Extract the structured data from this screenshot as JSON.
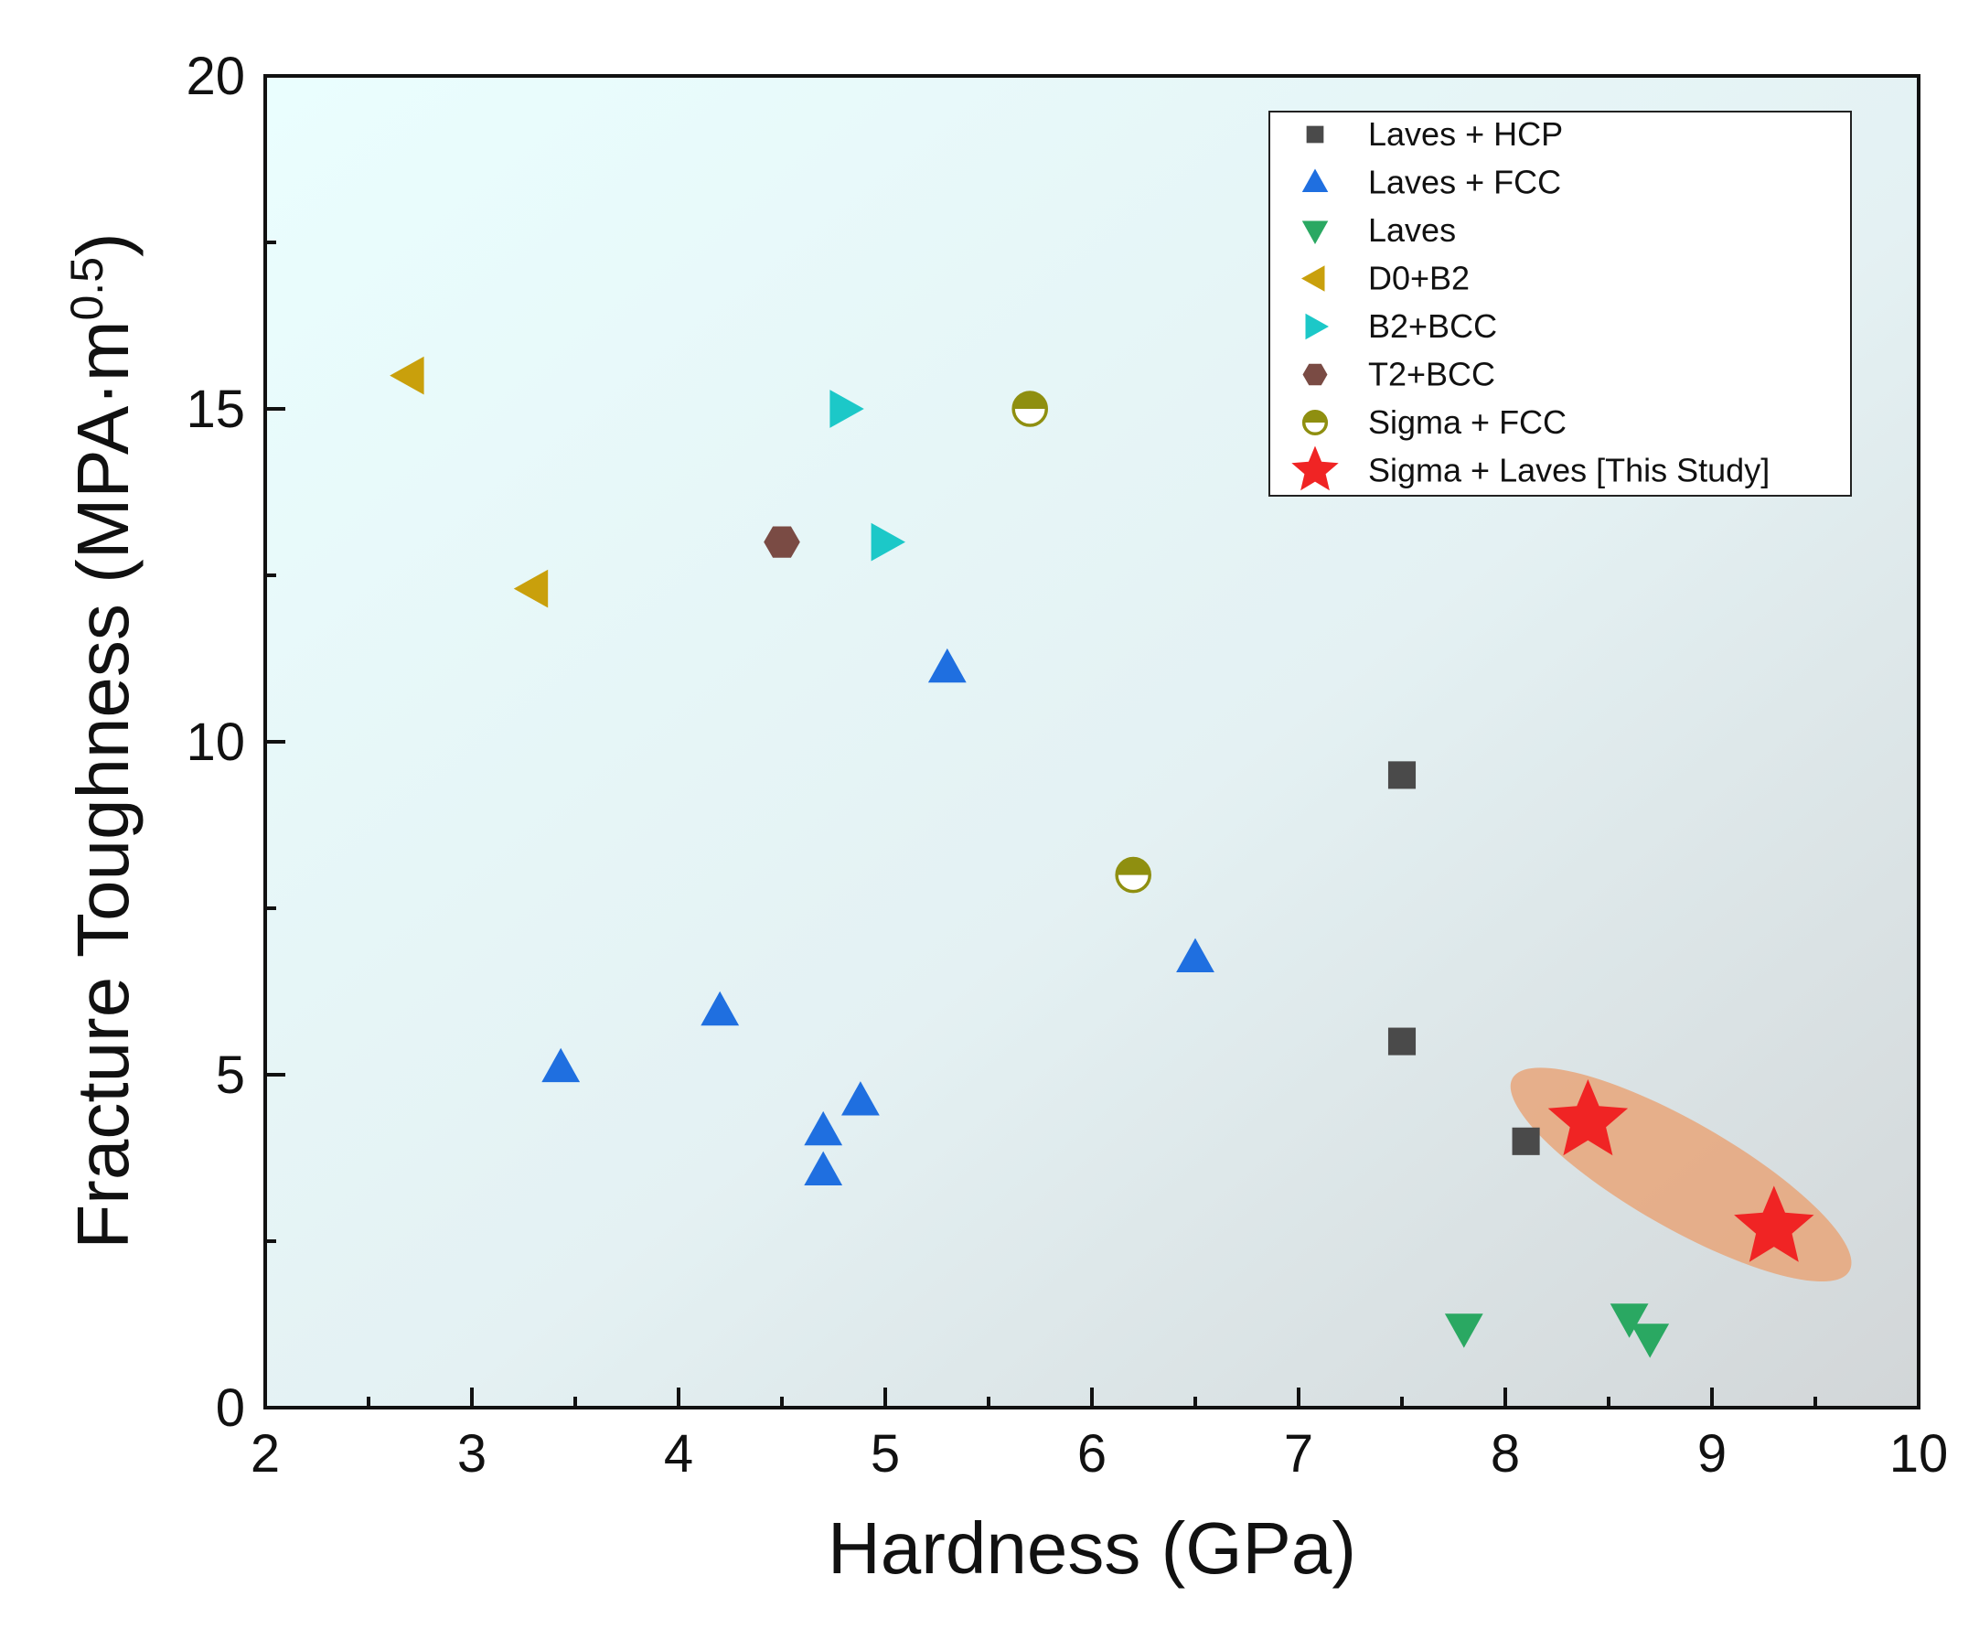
{
  "chart_data": {
    "type": "scatter",
    "title": "",
    "xlabel": "Hardness (GPa)",
    "ylabel_main": "Fracture Toughness (MPA·m",
    "ylabel_sup": "0.5",
    "ylabel_close": ")",
    "xlim": [
      2,
      10
    ],
    "ylim": [
      0,
      20
    ],
    "xticks": [
      2,
      3,
      4,
      5,
      6,
      7,
      8,
      9,
      10
    ],
    "yticks": [
      0,
      5,
      10,
      15,
      20
    ],
    "xtick_labels": [
      "2",
      "3",
      "4",
      "5",
      "6",
      "7",
      "8",
      "9",
      "10"
    ],
    "ytick_labels": [
      "0",
      "5",
      "10",
      "15",
      "20"
    ],
    "legend_position": "top-right",
    "background": "gradient light cyan to grey",
    "series": [
      {
        "name": "Laves + HCP",
        "marker": "square",
        "color": "#4a4a4a",
        "points": [
          [
            7.5,
            9.5
          ],
          [
            7.5,
            5.5
          ],
          [
            8.1,
            4.0
          ]
        ]
      },
      {
        "name": "Laves + FCC",
        "marker": "triangle-up",
        "color": "#1f6fe0",
        "points": [
          [
            3.43,
            5.1
          ],
          [
            4.2,
            5.95
          ],
          [
            4.7,
            4.15
          ],
          [
            4.7,
            3.55
          ],
          [
            4.88,
            4.6
          ],
          [
            5.3,
            11.1
          ],
          [
            6.5,
            6.75
          ]
        ]
      },
      {
        "name": "Laves",
        "marker": "triangle-down",
        "color": "#2aa862",
        "points": [
          [
            7.8,
            1.2
          ],
          [
            8.6,
            1.35
          ],
          [
            8.7,
            1.05
          ]
        ]
      },
      {
        "name": "D0+B2",
        "marker": "triangle-left",
        "color": "#c9a00c",
        "points": [
          [
            2.7,
            15.5
          ],
          [
            3.3,
            12.3
          ]
        ]
      },
      {
        "name": "B2+BCC",
        "marker": "triangle-right",
        "color": "#1cc8c8",
        "points": [
          [
            4.8,
            15.0
          ],
          [
            5.0,
            13.0
          ]
        ]
      },
      {
        "name": "T2+BCC",
        "marker": "hexagon",
        "color": "#7a4b44",
        "points": [
          [
            4.5,
            13.0
          ]
        ]
      },
      {
        "name": "Sigma + FCC",
        "marker": "half-circle",
        "color": "#8f8f10",
        "points": [
          [
            5.7,
            15.0
          ],
          [
            6.2,
            8.0
          ]
        ]
      },
      {
        "name": "Sigma + Laves [This Study]",
        "marker": "star",
        "color": "#f02424",
        "points": [
          [
            8.4,
            4.3
          ],
          [
            9.3,
            2.7
          ]
        ]
      }
    ],
    "highlight": {
      "type": "ellipse",
      "color": "#e8a67a",
      "around_series": "Sigma + Laves [This Study]"
    }
  }
}
